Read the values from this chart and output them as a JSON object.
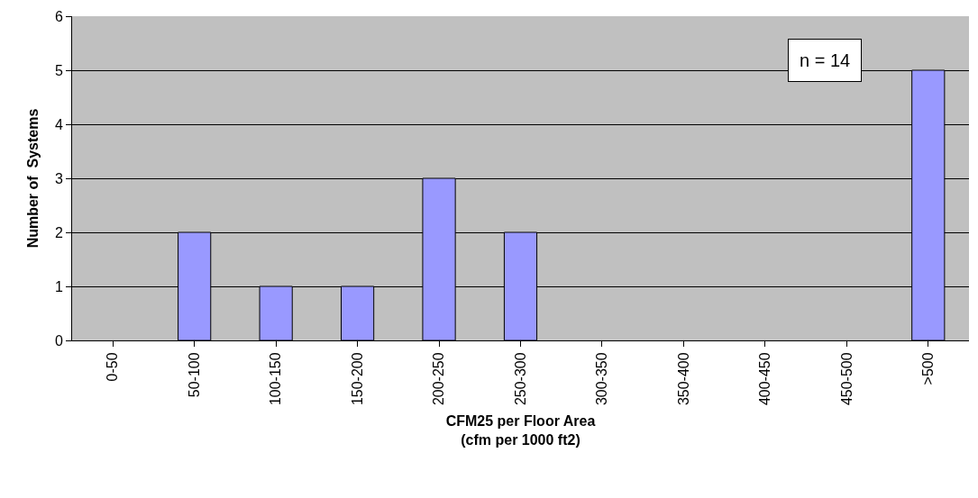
{
  "chart_data": {
    "type": "bar",
    "categories": [
      "0-50",
      "50-100",
      "100-150",
      "150-200",
      "200-250",
      "250-300",
      "300-350",
      "350-400",
      "400-450",
      "450-500",
      ">500"
    ],
    "values": [
      0,
      2,
      1,
      1,
      3,
      2,
      0,
      0,
      0,
      0,
      5
    ],
    "color": "#9999ff",
    "xlabel": "CFM25 per Floor Area\n(cfm per 1000 ft2)",
    "ylabel": "Number of  Systems",
    "annotations": [
      "n = 14"
    ],
    "ylim": [
      0,
      6
    ],
    "yticks": [
      0,
      1,
      2,
      3,
      4,
      5,
      6
    ],
    "grid": "y"
  }
}
